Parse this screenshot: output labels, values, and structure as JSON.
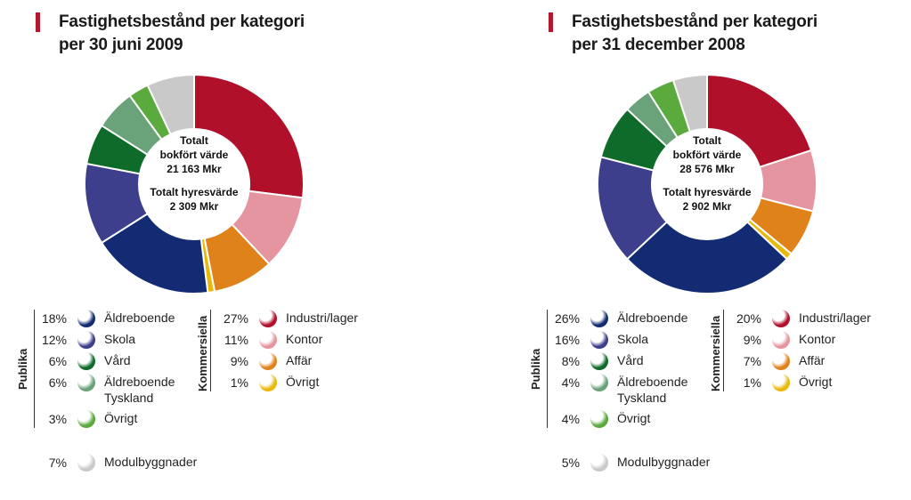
{
  "colors": {
    "aldreboende": "#132b72",
    "skola": "#3e3f8c",
    "vard": "#0e6b2a",
    "aldreboende_tyskland": "#6aa27a",
    "ovrigt_publika": "#5aaa3e",
    "modulbyggnader": "#c9c9c9",
    "industri": "#b0102a",
    "kontor": "#e5959f",
    "affar": "#e0821a",
    "ovrigt_kommersiella": "#e8b90c",
    "accent": "#b5172f"
  },
  "groups": {
    "publika": "Publika",
    "kommersiella": "Kommersiella"
  },
  "charts": [
    {
      "title_line1": "Fastighetsbestånd per kategori",
      "title_line2": "per 30 juni 2009",
      "center": {
        "line1": "Totalt",
        "line2": "bokfört värde",
        "line3": "21 163 Mkr",
        "line4": "Totalt hyresvärde",
        "line5": "2 309 Mkr"
      },
      "legend": {
        "aldreboende": {
          "pct": "18%",
          "label": "Äldreboende"
        },
        "skola": {
          "pct": "12%",
          "label": "Skola"
        },
        "vard": {
          "pct": "6%",
          "label": "Vård"
        },
        "aldreboende_tyskland": {
          "pct": "6%",
          "label": "Äldreboende Tyskland"
        },
        "ovrigt_publika": {
          "pct": "3%",
          "label": "Övrigt"
        },
        "modulbyggnader": {
          "pct": "7%",
          "label": "Modulbyggnader"
        },
        "industri": {
          "pct": "27%",
          "label": "Industri/lager"
        },
        "kontor": {
          "pct": "11%",
          "label": "Kontor"
        },
        "affar": {
          "pct": "9%",
          "label": "Affär"
        },
        "ovrigt_kommersiella": {
          "pct": "1%",
          "label": "Övrigt"
        }
      }
    },
    {
      "title_line1": "Fastighetsbestånd per kategori",
      "title_line2": "per 31 december 2008",
      "center": {
        "line1": "Totalt",
        "line2": "bokfört värde",
        "line3": "28 576 Mkr",
        "line4": "Totalt hyresvärde",
        "line5": "2 902 Mkr"
      },
      "legend": {
        "aldreboende": {
          "pct": "26%",
          "label": "Äldreboende"
        },
        "skola": {
          "pct": "16%",
          "label": "Skola"
        },
        "vard": {
          "pct": "8%",
          "label": "Vård"
        },
        "aldreboende_tyskland": {
          "pct": "4%",
          "label": "Äldreboende Tyskland"
        },
        "ovrigt_publika": {
          "pct": "4%",
          "label": "Övrigt"
        },
        "modulbyggnader": {
          "pct": "5%",
          "label": "Modulbyggnader"
        },
        "industri": {
          "pct": "20%",
          "label": "Industri/lager"
        },
        "kontor": {
          "pct": "9%",
          "label": "Kontor"
        },
        "affar": {
          "pct": "7%",
          "label": "Affär"
        },
        "ovrigt_kommersiella": {
          "pct": "1%",
          "label": "Övrigt"
        }
      }
    }
  ],
  "chart_data": [
    {
      "type": "pie",
      "title": "Fastighetsbestånd per kategori per 30 juni 2009",
      "categories": [
        "Industri/lager",
        "Kontor",
        "Affär",
        "Övrigt",
        "Äldreboende",
        "Skola",
        "Vård",
        "Äldreboende Tyskland",
        "Övrigt",
        "Modulbyggnader"
      ],
      "values": [
        27,
        11,
        9,
        1,
        18,
        12,
        6,
        6,
        3,
        7
      ],
      "color_keys": [
        "industri",
        "kontor",
        "affar",
        "ovrigt_kommersiella",
        "aldreboende",
        "skola",
        "vard",
        "aldreboende_tyskland",
        "ovrigt_publika",
        "modulbyggnader"
      ]
    },
    {
      "type": "pie",
      "title": "Fastighetsbestånd per kategori per 31 december 2008",
      "categories": [
        "Industri/lager",
        "Kontor",
        "Affär",
        "Övrigt",
        "Äldreboende",
        "Skola",
        "Vård",
        "Äldreboende Tyskland",
        "Övrigt",
        "Modulbyggnader"
      ],
      "values": [
        20,
        9,
        7,
        1,
        26,
        16,
        8,
        4,
        4,
        5
      ],
      "color_keys": [
        "industri",
        "kontor",
        "affar",
        "ovrigt_kommersiella",
        "aldreboende",
        "skola",
        "vard",
        "aldreboende_tyskland",
        "ovrigt_publika",
        "modulbyggnader"
      ]
    }
  ]
}
